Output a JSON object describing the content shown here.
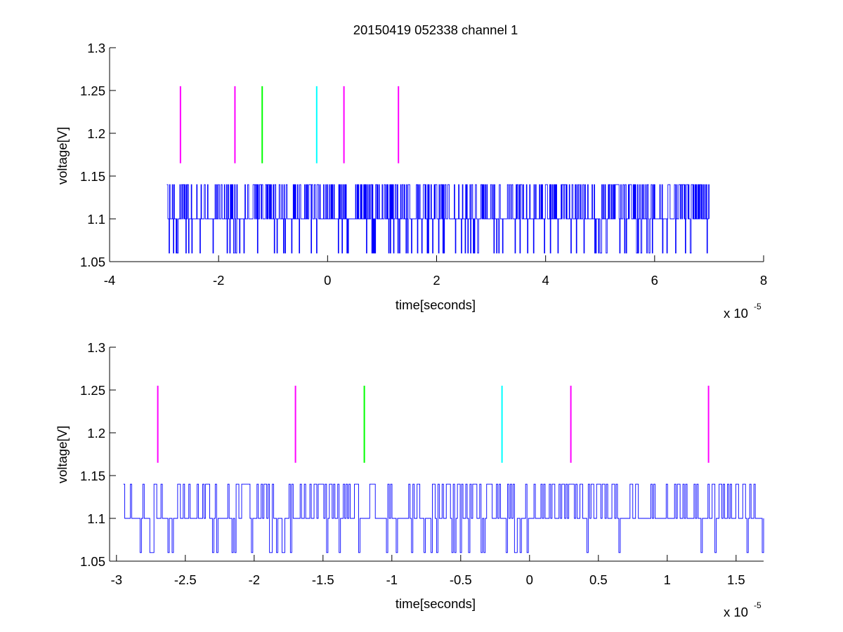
{
  "figure": {
    "title": "20150419 052338 channel 1",
    "background": "#ffffff",
    "signal_color": "#0000ff",
    "marker_colors": {
      "magenta": "#ff00ff",
      "green": "#00ff00",
      "cyan": "#00ffff"
    }
  },
  "chart_data": [
    {
      "type": "line",
      "title": "20150419 052338 channel 1",
      "xlabel": "time[seconds]",
      "ylabel": "voltage[V]",
      "x_exponent_label": "x 10",
      "x_exponent_power": "-5",
      "xlim": [
        -4,
        8
      ],
      "ylim": [
        1.05,
        1.3
      ],
      "xticks": [
        -4,
        -2,
        0,
        2,
        4,
        6,
        8
      ],
      "xtick_labels": [
        "-4",
        "-2",
        "0",
        "2",
        "4",
        "6",
        "8"
      ],
      "yticks": [
        1.05,
        1.1,
        1.15,
        1.2,
        1.25,
        1.3
      ],
      "ytick_labels": [
        "1.05",
        "1.1",
        "1.15",
        "1.2",
        "1.25",
        "1.3"
      ],
      "grid": false,
      "series": [
        {
          "color": "#0000ff",
          "x_start": -2.95,
          "x_end": 7.0,
          "levels": [
            1.06,
            1.1,
            1.14
          ],
          "style": "noisy step"
        }
      ],
      "vertical_markers": [
        {
          "x": -2.7,
          "y_from": 1.165,
          "y_to": 1.255,
          "color": "#ff00ff"
        },
        {
          "x": -1.7,
          "y_from": 1.165,
          "y_to": 1.255,
          "color": "#ff00ff"
        },
        {
          "x": -1.2,
          "y_from": 1.165,
          "y_to": 1.255,
          "color": "#00ff00"
        },
        {
          "x": -0.2,
          "y_from": 1.165,
          "y_to": 1.255,
          "color": "#00ffff"
        },
        {
          "x": 0.3,
          "y_from": 1.165,
          "y_to": 1.255,
          "color": "#ff00ff"
        },
        {
          "x": 1.3,
          "y_from": 1.165,
          "y_to": 1.255,
          "color": "#ff00ff"
        }
      ]
    },
    {
      "type": "line",
      "title": "",
      "xlabel": "time[seconds]",
      "ylabel": "voltage[V]",
      "x_exponent_label": "x 10",
      "x_exponent_power": "-5",
      "xlim": [
        -3.05,
        1.7
      ],
      "ylim": [
        1.05,
        1.3
      ],
      "xticks": [
        -3,
        -2.5,
        -2,
        -1.5,
        -1,
        -0.5,
        0,
        0.5,
        1,
        1.5
      ],
      "xtick_labels": [
        "-3",
        "-2.5",
        "-2",
        "-1.5",
        "-1",
        "-0.5",
        "0",
        "0.5",
        "1",
        "1.5"
      ],
      "yticks": [
        1.05,
        1.1,
        1.15,
        1.2,
        1.25,
        1.3
      ],
      "ytick_labels": [
        "1.05",
        "1.1",
        "1.15",
        "1.2",
        "1.25",
        "1.3"
      ],
      "grid": false,
      "series": [
        {
          "color": "#0000ff",
          "x_start": -2.95,
          "x_end": 1.7,
          "levels": [
            1.06,
            1.1,
            1.14
          ],
          "style": "noisy step"
        }
      ],
      "vertical_markers": [
        {
          "x": -2.7,
          "y_from": 1.165,
          "y_to": 1.255,
          "color": "#ff00ff"
        },
        {
          "x": -1.7,
          "y_from": 1.165,
          "y_to": 1.255,
          "color": "#ff00ff"
        },
        {
          "x": -1.2,
          "y_from": 1.165,
          "y_to": 1.255,
          "color": "#00ff00"
        },
        {
          "x": -0.2,
          "y_from": 1.165,
          "y_to": 1.255,
          "color": "#00ffff"
        },
        {
          "x": 0.3,
          "y_from": 1.165,
          "y_to": 1.255,
          "color": "#ff00ff"
        },
        {
          "x": 1.3,
          "y_from": 1.165,
          "y_to": 1.255,
          "color": "#ff00ff"
        }
      ]
    }
  ]
}
